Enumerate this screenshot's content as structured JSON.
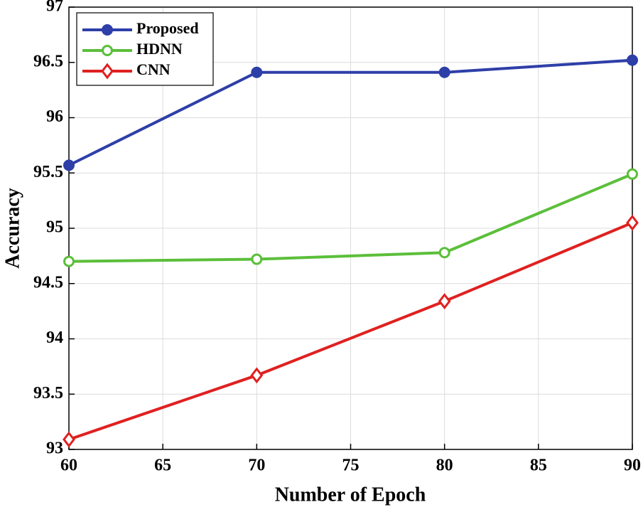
{
  "chart_data": {
    "type": "line",
    "x_label": "Number of Epoch",
    "y_label": "Accuracy",
    "x": [
      60,
      70,
      80,
      90
    ],
    "series": [
      {
        "name": "Proposed",
        "color": "#2e3fa8",
        "marker": "circle-filled",
        "values": [
          95.57,
          96.41,
          96.41,
          96.52
        ]
      },
      {
        "name": "HDNN",
        "color": "#5bbf3a",
        "marker": "circle-open",
        "values": [
          94.7,
          94.72,
          94.78,
          95.49
        ]
      },
      {
        "name": "CNN",
        "color": "#e02020",
        "marker": "diamond-open",
        "values": [
          93.09,
          93.67,
          94.34,
          95.05
        ]
      }
    ],
    "xlim": [
      60,
      90
    ],
    "xticks": [
      60,
      65,
      70,
      75,
      80,
      85,
      90
    ],
    "ylim": [
      93,
      97
    ],
    "yticks": [
      93,
      93.5,
      94,
      94.5,
      95,
      95.5,
      96,
      96.5,
      97
    ],
    "grid": true,
    "legend": "upper-left"
  }
}
